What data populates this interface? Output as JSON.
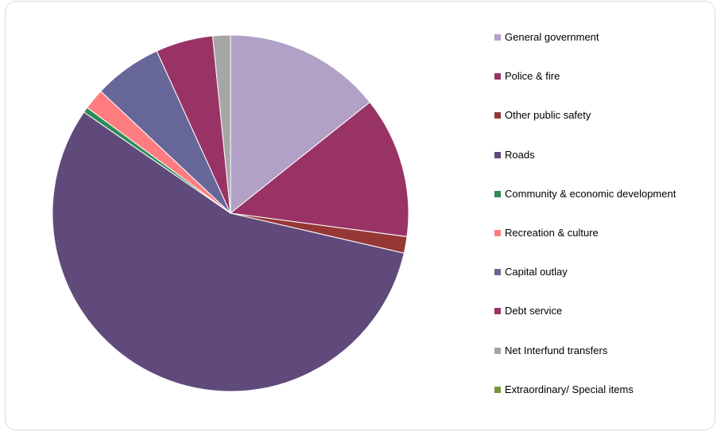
{
  "chart_data": {
    "type": "pie",
    "title": "",
    "legend_position": "right",
    "slices": [
      {
        "label": "General government",
        "value": 14.3,
        "color": "#B2A1C7"
      },
      {
        "label": "Police & fire",
        "value": 12.8,
        "color": "#993366"
      },
      {
        "label": "Other public safety",
        "value": 1.5,
        "color": "#953735"
      },
      {
        "label": "Roads",
        "value": 56.0,
        "color": "#604A7B"
      },
      {
        "label": "Community & economic development",
        "value": 0.5,
        "color": "#2E8B57"
      },
      {
        "label": "Recreation & culture",
        "value": 1.9,
        "color": "#FF7C80"
      },
      {
        "label": "Capital outlay",
        "value": 6.2,
        "color": "#666699"
      },
      {
        "label": "Debt service",
        "value": 5.2,
        "color": "#993366"
      },
      {
        "label": "Net Interfund transfers",
        "value": 1.6,
        "color": "#A6A6A6"
      },
      {
        "label": "Extraordinary/ Special items",
        "value": 0.0,
        "color": "#77933C"
      }
    ]
  }
}
